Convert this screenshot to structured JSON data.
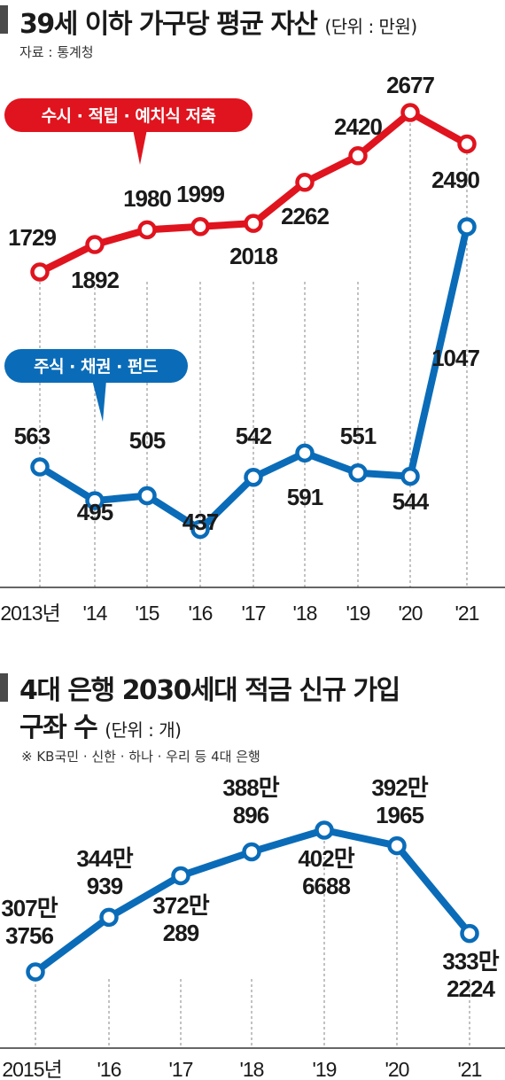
{
  "chart1": {
    "title": "39세 이하 가구당 평균 자산",
    "unit": "(단위 : 만원)",
    "source": "자료 : 통계청",
    "colors": {
      "savings": "#e0141e",
      "stocks": "#0a6cb8"
    },
    "chart_data": {
      "type": "line",
      "categories": [
        "2013년",
        "'14",
        "'15",
        "'16",
        "'17",
        "'18",
        "'19",
        "'20",
        "'21"
      ],
      "series": [
        {
          "name": "수시 · 적립 · 예치식 저축",
          "values": [
            1729,
            1892,
            1980,
            1999,
            2018,
            2262,
            2420,
            2677,
            2490
          ]
        },
        {
          "name": "주식 · 채권 · 펀드",
          "values": [
            563,
            495,
            505,
            437,
            542,
            591,
            551,
            544,
            1047
          ]
        }
      ]
    }
  },
  "chart2": {
    "title_line1": "4대 은행 2030세대 적금 신규 가입",
    "title_line2": "구좌 수",
    "unit": "(단위 : 개)",
    "note": "※ KB국민 · 신한 · 하나 · 우리 등 4대 은행",
    "colors": {
      "line": "#0a6cb8"
    },
    "chart_data": {
      "type": "line",
      "categories": [
        "2015년",
        "'16",
        "'17",
        "'18",
        "'19",
        "'20",
        "'21"
      ],
      "series": [
        {
          "values": [
            3073756,
            3440939,
            3720289,
            3880896,
            4026688,
            3921965,
            3332224
          ]
        }
      ],
      "data_labels": [
        [
          "307만",
          "3756"
        ],
        [
          "344만",
          "939"
        ],
        [
          "372만",
          "289"
        ],
        [
          "388만",
          "896"
        ],
        [
          "402만",
          "6688"
        ],
        [
          "392만",
          "1965"
        ],
        [
          "333만",
          "2224"
        ]
      ]
    }
  }
}
